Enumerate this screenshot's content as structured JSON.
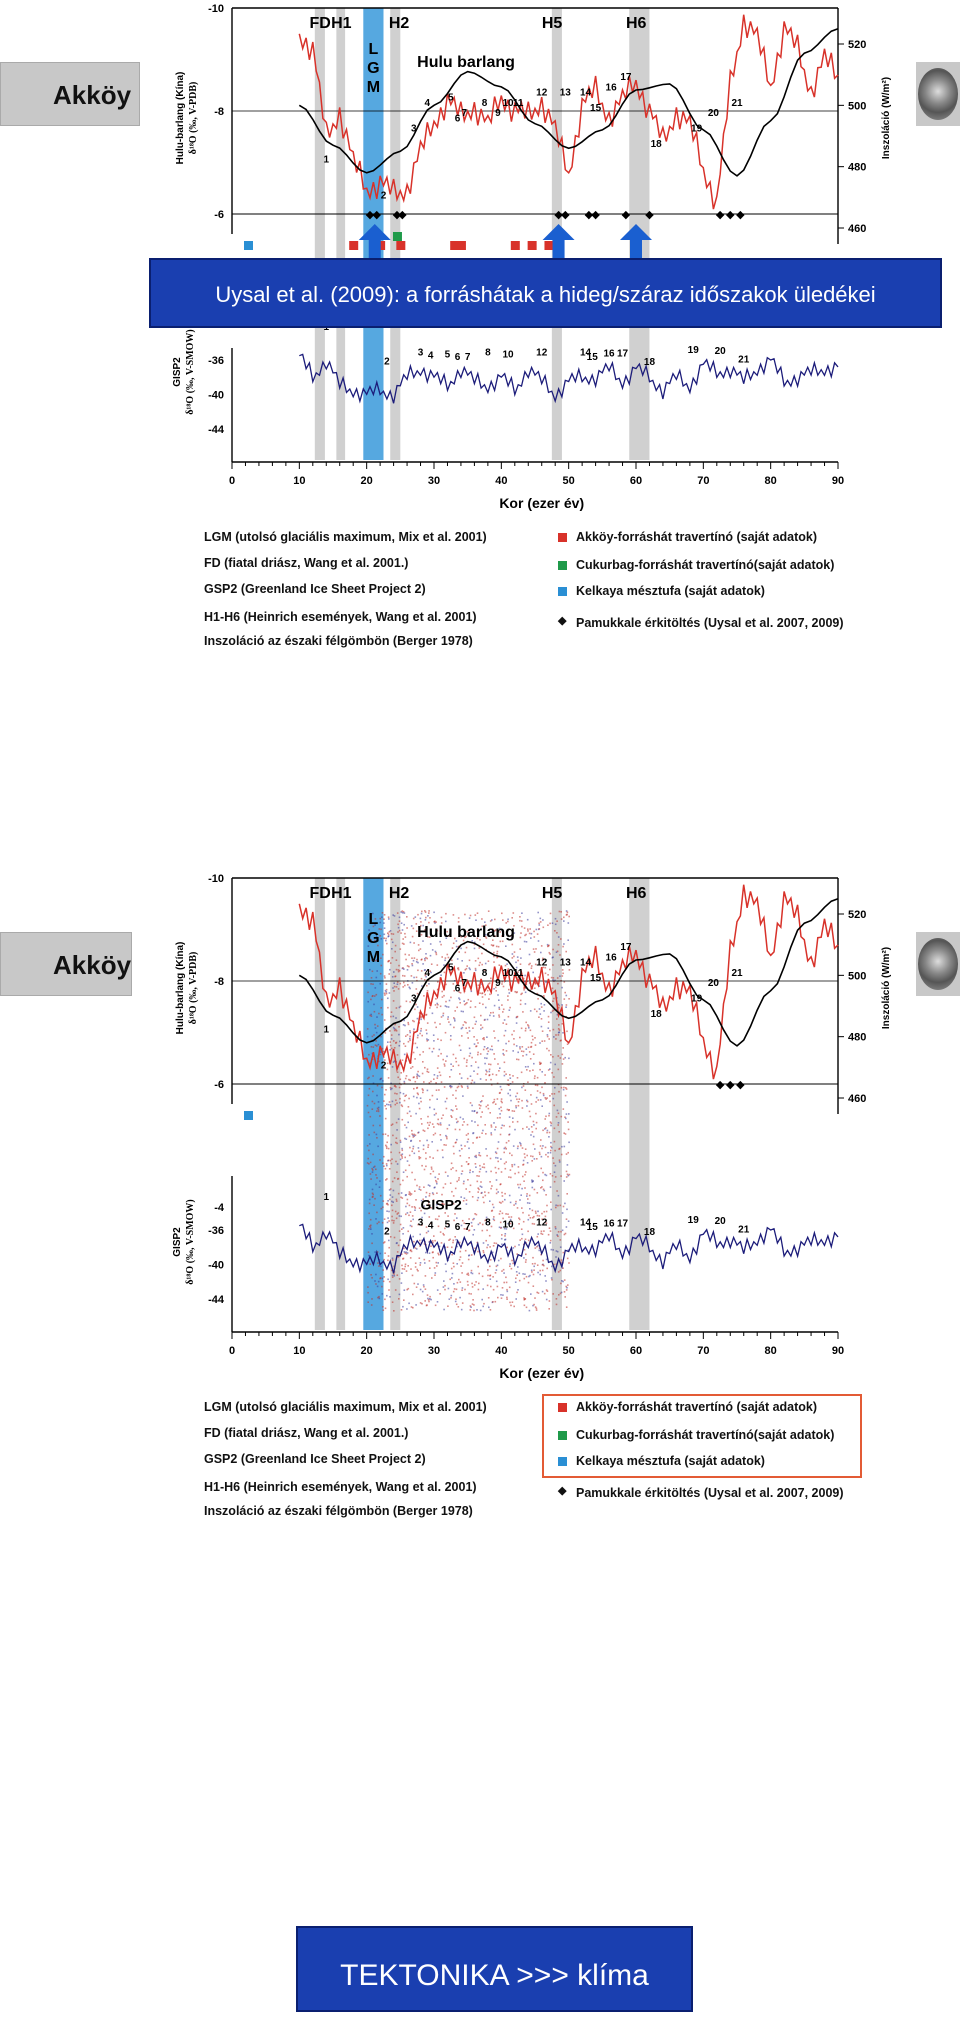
{
  "slides": [
    {
      "ghost_title": "Akköy",
      "banner": "Uysal et al. (2009): a forráshátak a hideg/száraz időszakok üledékei"
    },
    {
      "ghost_title": "Akköy",
      "banner": "TEKTONIKA >>> klíma"
    }
  ],
  "events": [
    "FD",
    "H1",
    "H2",
    "H5",
    "H6"
  ],
  "lgm_label": [
    "L",
    "G",
    "M"
  ],
  "hulu_title": "Hulu barlang",
  "gisp2_title": "GISP2",
  "axes": {
    "hulu_ylabel_line1": "Hulu-barlang (Kína)",
    "hulu_ylabel_line2": "δ¹⁸O (‰, V-PDB)",
    "gisp_ylabel_line1": "GISP2",
    "gisp_ylabel_line2": "δ¹⁸O (‰, V-SMOW)",
    "insol_ylabel": "Inszoláció (W/m²)",
    "xlabel": "Kor (ezer év)",
    "x_ticks": [
      "0",
      "10",
      "20",
      "30",
      "40",
      "50",
      "60",
      "70",
      "80",
      "90"
    ],
    "hulu_ticks": [
      "-10",
      "-8",
      "-6"
    ],
    "gisp_ticks": [
      "-4",
      "-36",
      "-40",
      "-44"
    ],
    "insol_ticks": [
      "520",
      "500",
      "480",
      "460"
    ]
  },
  "legend": {
    "left": [
      "LGM (utolsó glaciális maximum, Mix et al. 2001)",
      "FD (fiatal driász, Wang et al. 2001.)",
      "GSP2 (Greenland Ice Sheet Project 2)",
      "H1-H6 (Heinrich események, Wang et al. 2001)",
      "Inszoláció az északi félgömbön (Berger 1978)"
    ],
    "right": [
      "Akköy-forráshát travertínó (saját adatok)",
      "Cukurbag-forráshát travertínó(saját adatok)",
      "Kelkaya mésztufa (saját adatok)",
      "Pamukkale érkitöltés (Uysal et al. 2007, 2009)"
    ]
  },
  "chart_data": {
    "type": "line",
    "xlabel": "Kor (ezer év)",
    "xlim": [
      0,
      90
    ],
    "series": [
      {
        "name": "Hulu barlang",
        "x": [
          10,
          12,
          14,
          16,
          18,
          20,
          22,
          24,
          26,
          28,
          30,
          32,
          34,
          36,
          38,
          40,
          42,
          44,
          46,
          48,
          50,
          52,
          54,
          56,
          58,
          60,
          62,
          64,
          66,
          68,
          70,
          72,
          74,
          76,
          78,
          80,
          82,
          84,
          86,
          88,
          90
        ],
        "values": [
          -9.5,
          -9.2,
          -7.5,
          -8.0,
          -7.0,
          -6.5,
          -6.6,
          -6.4,
          -6.5,
          -7.2,
          -7.8,
          -8.2,
          -7.9,
          -8.1,
          -7.7,
          -8.3,
          -8.0,
          -7.9,
          -8.2,
          -7.6,
          -6.8,
          -8.1,
          -8.4,
          -7.9,
          -8.2,
          -8.6,
          -8.0,
          -7.4,
          -8.0,
          -7.7,
          -6.9,
          -6.2,
          -8.5,
          -9.8,
          -9.4,
          -8.5,
          -9.6,
          -9.2,
          -8.4,
          -9.0,
          -8.7
        ]
      },
      {
        "name": "Inszoláció",
        "x": [
          10,
          15,
          20,
          25,
          30,
          35,
          40,
          45,
          50,
          55,
          60,
          65,
          70,
          75,
          80,
          85,
          90
        ],
        "values": [
          500,
          487,
          478,
          485,
          500,
          511,
          506,
          494,
          486,
          492,
          505,
          507,
          492,
          477,
          495,
          517,
          525
        ]
      },
      {
        "name": "GISP2",
        "x": [
          10,
          12,
          14,
          16,
          18,
          20,
          22,
          24,
          26,
          28,
          30,
          32,
          34,
          36,
          38,
          40,
          42,
          44,
          46,
          48,
          50,
          52,
          54,
          56,
          58,
          60,
          62,
          64,
          66,
          68,
          70,
          72,
          74,
          76,
          78,
          80,
          82,
          84,
          86,
          88,
          90
        ],
        "values": [
          -35.5,
          -38,
          -36,
          -39,
          -39.5,
          -40,
          -39.5,
          -40,
          -38,
          -37,
          -38,
          -39,
          -37,
          -38.5,
          -39,
          -38,
          -39.5,
          -37,
          -38.5,
          -40,
          -38.5,
          -38,
          -38,
          -37,
          -38.5,
          -37,
          -38,
          -39.5,
          -38,
          -39,
          -36.5,
          -37.5,
          -37,
          -38.5,
          -37,
          -36,
          -38.5,
          -38,
          -37.5,
          -37,
          -36.8
        ]
      }
    ],
    "event_numbers": [
      "1",
      "2",
      "3",
      "4",
      "5",
      "6",
      "7",
      "8",
      "9",
      "10",
      "11",
      "12",
      "13",
      "14",
      "15",
      "16",
      "17",
      "18",
      "19",
      "20",
      "21"
    ],
    "hulu_ylim": [
      -10,
      -6
    ],
    "gisp_ylim": [
      -44,
      -32
    ],
    "insol_ylim": [
      460,
      520
    ]
  },
  "colors": {
    "hulu": "#d8322a",
    "gisp": "#1c1c7a",
    "insol": "#000000",
    "lgm": "#56a8e0",
    "events": "#c8c8c8",
    "akkoy": "#d8322a",
    "cukurbag": "#1f9a4a",
    "kelkaya": "#2a8fd4",
    "pamukkale": "#000000"
  }
}
